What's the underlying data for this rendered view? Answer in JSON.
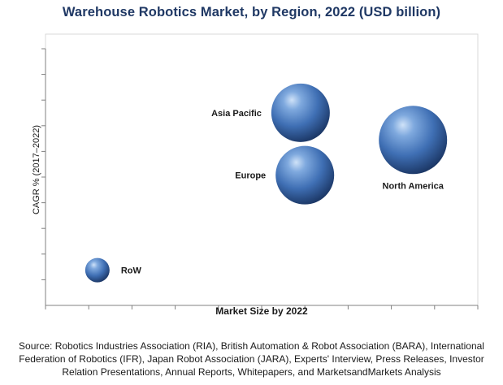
{
  "title": "Warehouse Robotics Market, by Region, 2022 (USD billion)",
  "source": "Source: Robotics Industries Association (RIA), British Automation & Robot Association (BARA), International Federation of Robotics (IFR), Japan Robot Association (JARA), Experts' Interview, Press Releases, Investor Relation Presentations, Annual Reports, Whitepapers, and MarketsandMarkets Analysis",
  "chart_data": {
    "type": "scatter",
    "title": "Warehouse Robotics Market, by Region, 2022 (USD billion)",
    "xlabel": "Market Size by 2022",
    "ylabel": "CAGR % (2017–2022)",
    "xlim": [
      0,
      10
    ],
    "ylim": [
      0,
      10
    ],
    "grid": false,
    "legend": "none",
    "bubble_color": "#3d6fb6",
    "points": [
      {
        "label": "Asia Pacific",
        "x": 5.9,
        "y": 7.1,
        "size": 36
      },
      {
        "label": "Europe",
        "x": 6.0,
        "y": 4.8,
        "size": 36
      },
      {
        "label": "North America",
        "x": 8.5,
        "y": 6.1,
        "size": 42
      },
      {
        "label": "RoW",
        "x": 1.2,
        "y": 1.3,
        "size": 15
      }
    ]
  }
}
